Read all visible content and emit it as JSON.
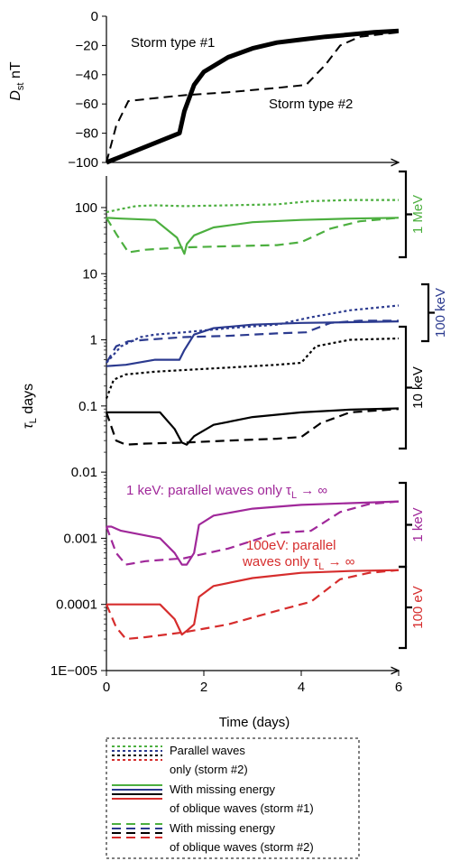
{
  "chart_data": [
    {
      "type": "line",
      "panel": "dst",
      "ylabel_main": "D",
      "ylabel_sub": "st",
      "ylabel_unit": " nT",
      "ylim": [
        -100,
        0
      ],
      "yticks": [
        0,
        -20,
        -40,
        -60,
        -80,
        -100
      ],
      "ytick_labels": [
        "0",
        "−20",
        "−40",
        "−60",
        "−80",
        "−100"
      ],
      "xlim": [
        0,
        6
      ],
      "annotations": [
        "Storm type #1",
        "Storm type #2"
      ],
      "series": [
        {
          "style": "solid-thick",
          "color": "#000000",
          "x": [
            0,
            1.5,
            1.6,
            1.8,
            2.0,
            2.5,
            3.0,
            3.5,
            4.0,
            4.5,
            5.0,
            5.5,
            6.0
          ],
          "y": [
            -100,
            -80,
            -65,
            -47,
            -38,
            -28,
            -22,
            -18,
            -16,
            -14,
            -12.5,
            -11,
            -10
          ]
        },
        {
          "style": "dashed",
          "color": "#000000",
          "x": [
            0,
            0.2,
            0.45,
            1.0,
            1.6,
            2.5,
            3.5,
            4.1,
            4.5,
            4.8,
            5.2,
            6.0
          ],
          "y": [
            -100,
            -75,
            -58,
            -56,
            -54,
            -52,
            -49,
            -47,
            -33,
            -20,
            -14,
            -11
          ]
        }
      ]
    },
    {
      "type": "line",
      "panel": "tau",
      "ylabel_main": "τ",
      "ylabel_sub": "L",
      "ylabel_unit": " days",
      "yscale": "log",
      "ylim": [
        1e-05,
        300
      ],
      "yticks": [
        100,
        10,
        1,
        0.1,
        0.01,
        0.001,
        0.0001,
        1e-05
      ],
      "ytick_labels": [
        "100",
        "10",
        "1",
        "0.1",
        "0.01",
        "0.001",
        "0.0001",
        "1E−005"
      ],
      "xlim": [
        0,
        6
      ],
      "xticks": [
        0,
        2,
        4,
        6
      ],
      "xtick_labels": [
        "0",
        "2",
        "4",
        "6"
      ],
      "xlabel": "Time (days)",
      "energy_labels": [
        "1 MeV",
        "100 keV",
        "10 keV",
        "1 keV",
        "100 eV"
      ],
      "text_notes": [
        "1 keV: parallel waves only τ",
        "100eV: parallel",
        "waves only τ"
      ],
      "colors": {
        "1 MeV": "#4caf3f",
        "100 keV": "#2b3a8f",
        "10 keV": "#000000",
        "1 keV": "#a0289a",
        "100 eV": "#d62d2d"
      },
      "series": [
        {
          "energy": "1 MeV",
          "style": "dotted",
          "x": [
            0,
            0.3,
            0.6,
            1.0,
            1.6,
            2.5,
            3.5,
            4.2,
            5.0,
            6.0
          ],
          "y": [
            85,
            95,
            105,
            108,
            105,
            108,
            112,
            125,
            130,
            130
          ]
        },
        {
          "energy": "1 MeV",
          "style": "solid",
          "x": [
            0,
            0.3,
            1.0,
            1.45,
            1.6,
            1.65,
            1.8,
            2.2,
            3.0,
            4.0,
            5.0,
            6.0
          ],
          "y": [
            70,
            68,
            65,
            35,
            20,
            28,
            38,
            50,
            60,
            65,
            68,
            70
          ]
        },
        {
          "energy": "1 MeV",
          "style": "dashed",
          "x": [
            0,
            0.2,
            0.45,
            0.8,
            1.6,
            2.5,
            3.5,
            4.0,
            4.6,
            5.2,
            6.0
          ],
          "y": [
            70,
            40,
            21,
            23,
            25,
            26,
            27,
            30,
            48,
            62,
            70
          ]
        },
        {
          "energy": "100 keV",
          "style": "dotted",
          "x": [
            0,
            0.3,
            0.7,
            1.0,
            1.6,
            2.5,
            3.5,
            4.2,
            5.0,
            6.0
          ],
          "y": [
            0.45,
            0.8,
            1.1,
            1.2,
            1.3,
            1.5,
            1.7,
            2.2,
            2.8,
            3.3
          ]
        },
        {
          "energy": "100 keV",
          "style": "solid",
          "x": [
            0,
            0.4,
            1.0,
            1.5,
            1.6,
            1.8,
            2.2,
            3.0,
            4.0,
            5.0,
            6.0
          ],
          "y": [
            0.4,
            0.42,
            0.5,
            0.5,
            0.7,
            1.2,
            1.5,
            1.7,
            1.8,
            1.85,
            1.9
          ]
        },
        {
          "energy": "100 keV",
          "style": "dashed",
          "x": [
            0,
            0.2,
            0.45,
            0.8,
            1.6,
            2.5,
            3.5,
            4.1,
            4.6,
            5.2,
            6.0
          ],
          "y": [
            0.45,
            0.8,
            0.95,
            1.0,
            1.1,
            1.15,
            1.25,
            1.3,
            1.8,
            1.95,
            1.95
          ]
        },
        {
          "energy": "10 keV",
          "style": "dotted",
          "x": [
            0,
            0.15,
            0.4,
            1.0,
            1.6,
            2.5,
            3.5,
            4.0,
            4.3,
            5.0,
            6.0
          ],
          "y": [
            0.13,
            0.25,
            0.3,
            0.33,
            0.35,
            0.38,
            0.42,
            0.45,
            0.8,
            1.0,
            1.05
          ]
        },
        {
          "energy": "10 keV",
          "style": "solid",
          "x": [
            0,
            1.1,
            1.4,
            1.55,
            1.65,
            1.8,
            2.2,
            3.0,
            4.0,
            5.0,
            6.0
          ],
          "y": [
            0.08,
            0.08,
            0.045,
            0.028,
            0.026,
            0.035,
            0.052,
            0.068,
            0.08,
            0.088,
            0.092
          ]
        },
        {
          "energy": "10 keV",
          "style": "dashed",
          "x": [
            0,
            0.2,
            0.4,
            0.8,
            1.6,
            2.5,
            3.5,
            4.0,
            4.4,
            5.0,
            6.0
          ],
          "y": [
            0.08,
            0.03,
            0.026,
            0.027,
            0.028,
            0.03,
            0.032,
            0.034,
            0.055,
            0.08,
            0.09
          ]
        },
        {
          "energy": "1 keV",
          "style": "solid",
          "x": [
            0,
            0.1,
            0.3,
            1.1,
            1.4,
            1.55,
            1.65,
            1.8,
            1.9,
            2.2,
            3.0,
            4.0,
            5.0,
            6.0
          ],
          "y": [
            0.0015,
            0.0015,
            0.0013,
            0.001,
            0.0006,
            0.0004,
            0.0004,
            0.0006,
            0.0016,
            0.0022,
            0.0028,
            0.0032,
            0.0034,
            0.0036
          ]
        },
        {
          "energy": "1 keV",
          "style": "dashed",
          "x": [
            0,
            0.2,
            0.4,
            0.8,
            1.6,
            2.5,
            3.5,
            4.2,
            4.8,
            5.4,
            6.0
          ],
          "y": [
            0.0015,
            0.0006,
            0.0004,
            0.00045,
            0.0005,
            0.0007,
            0.0012,
            0.0013,
            0.0025,
            0.0033,
            0.0036
          ]
        },
        {
          "energy": "100 eV",
          "style": "solid",
          "x": [
            0,
            0.1,
            0.3,
            1.1,
            1.4,
            1.55,
            1.65,
            1.8,
            1.9,
            2.2,
            3.0,
            4.0,
            5.0,
            6.0
          ],
          "y": [
            0.0001,
            0.0001,
            0.0001,
            0.0001,
            6e-05,
            3.5e-05,
            4e-05,
            5e-05,
            0.00013,
            0.00019,
            0.00025,
            0.0003,
            0.00032,
            0.00033
          ]
        },
        {
          "energy": "100 eV",
          "style": "dashed",
          "x": [
            0,
            0.2,
            0.4,
            0.8,
            1.6,
            2.5,
            3.5,
            4.2,
            4.8,
            5.4,
            6.0
          ],
          "y": [
            0.0001,
            4.5e-05,
            3e-05,
            3.2e-05,
            3.8e-05,
            5e-05,
            8e-05,
            0.00011,
            0.00024,
            0.0003,
            0.00033
          ]
        }
      ]
    }
  ],
  "legend": {
    "items": [
      {
        "style": "dotted",
        "lines": [
          "Parallel waves",
          "only (storm #2)"
        ]
      },
      {
        "style": "solid",
        "lines": [
          "With missing energy",
          "of oblique waves (storm #1)"
        ]
      },
      {
        "style": "dashed",
        "lines": [
          "With missing energy",
          "of oblique waves (storm #2)"
        ]
      }
    ],
    "colors": [
      "#4caf3f",
      "#2b3a8f",
      "#000000",
      "#d62d2d"
    ]
  }
}
